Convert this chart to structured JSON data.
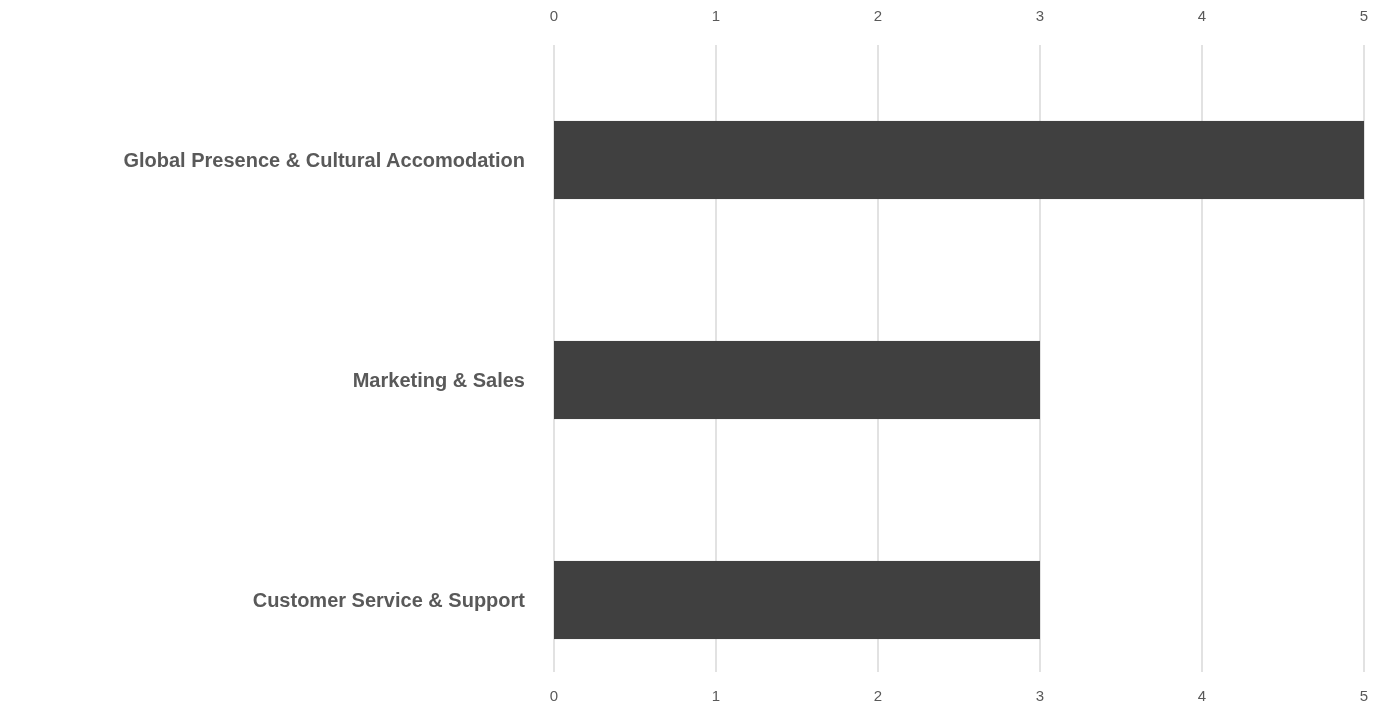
{
  "chart_data": {
    "type": "bar",
    "orientation": "horizontal",
    "categories": [
      "Global Presence & Cultural Accomodation",
      "Marketing & Sales",
      "Customer Service & Support"
    ],
    "values": [
      5,
      3,
      3
    ],
    "color": "#404040",
    "xlim": [
      0,
      5
    ],
    "xticks": [
      0,
      1,
      2,
      3,
      4,
      5
    ],
    "x2lim": [
      0,
      5
    ],
    "x2ticks": [
      0,
      1,
      2,
      3,
      4,
      5
    ],
    "grid": "x"
  }
}
